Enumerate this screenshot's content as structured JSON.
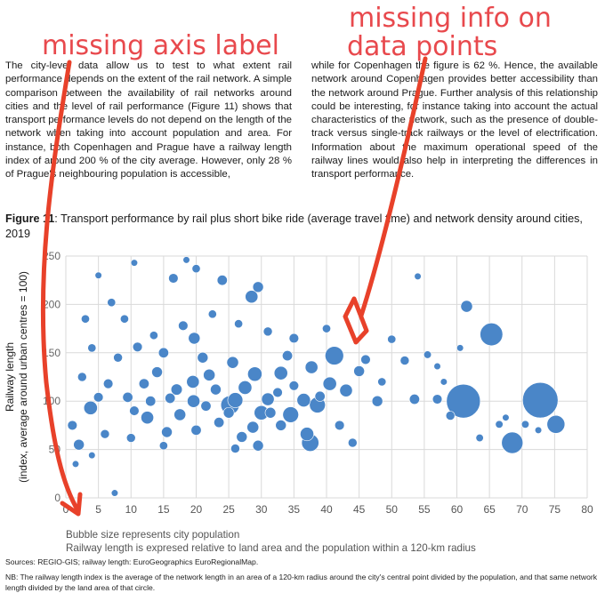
{
  "body_text": {
    "left_paragraph": "The city-level data allow us to test to what extent rail performance depends on the extent of the rail network. A simple comparison between the availability of rail networks around cities and the level of rail performance (Figure 11) shows that transport performance levels do not depend on the length of the network when taking into account population and area. For instance, both Copenhagen and Prague have a railway length index of around 200 % of the city average. However, only 28 % of Prague's neighbouring population is accessible,",
    "left_link": "Figure 11",
    "right_paragraph": "while for Copenhagen the figure is 62 %. Hence, the available network around Copenhagen provides better accessibility than the network around Prague. Further analysis of this relationship could be interesting, for instance taking into account the actual characteristics of the network, such as the presence of double-track versus single-track railways or the level of electrification. Information about the maximum operational speed of the railway lines would also help in interpreting the differences in transport performance."
  },
  "figure": {
    "label": "Figure 11",
    "title": ": Transport performance by rail plus short bike ride (average travel time) and network density around cities, 2019",
    "bubble_note": "Bubble size represents city population",
    "x_note": "Railway length is expresed relative to land area and the population within a 120-km radius",
    "sources": "Sources: REGIO-GIS; railway length: EuroGeographics EuroRegionalMap.",
    "nb": "NB: The railway length index is the average of the network length in an area of a 120-km radius around the city's central point divided by the population, and that same network length divided by the land area of that circle."
  },
  "annotations": {
    "missing_axis_label": "missing axis label",
    "missing_info_line1": "missing info on",
    "missing_info_line2": "data points",
    "arrow_color": "#e8412a",
    "text_color": "#e8494d"
  },
  "colors": {
    "bubble": "#4a86c8",
    "grid": "#d9d9d9",
    "link": "#2f6fbf"
  },
  "chart_data": {
    "type": "scatter",
    "title": "Transport performance by rail plus short bike ride (average travel time) and network density around cities, 2019",
    "xlabel": "",
    "ylabel": "Railway length (index, average around urban centres = 100)",
    "xlim": [
      0,
      80
    ],
    "ylim": [
      0,
      250
    ],
    "x_ticks": [
      0,
      5,
      10,
      15,
      20,
      25,
      30,
      35,
      40,
      45,
      50,
      55,
      60,
      65,
      70,
      75,
      80
    ],
    "y_ticks": [
      0,
      50,
      100,
      150,
      200,
      250
    ],
    "grid": true,
    "bubble_size": "city population",
    "points": [
      {
        "x": 61,
        "y": 100,
        "size": 100
      },
      {
        "x": 72.8,
        "y": 101,
        "size": 110
      },
      {
        "x": 65.3,
        "y": 169,
        "size": 45
      },
      {
        "x": 68.5,
        "y": 57,
        "size": 40
      },
      {
        "x": 75.2,
        "y": 76,
        "size": 28
      },
      {
        "x": 61.5,
        "y": 198,
        "size": 12
      },
      {
        "x": 37.7,
        "y": 135,
        "size": 14
      },
      {
        "x": 41.2,
        "y": 147,
        "size": 30
      },
      {
        "x": 37.5,
        "y": 57,
        "size": 26
      },
      {
        "x": 37.0,
        "y": 66,
        "size": 16
      },
      {
        "x": 38.6,
        "y": 96,
        "size": 22
      },
      {
        "x": 34.5,
        "y": 86,
        "size": 22
      },
      {
        "x": 36.5,
        "y": 101,
        "size": 16
      },
      {
        "x": 40.5,
        "y": 118,
        "size": 16
      },
      {
        "x": 30.0,
        "y": 88,
        "size": 18
      },
      {
        "x": 25.2,
        "y": 96,
        "size": 30
      },
      {
        "x": 26.0,
        "y": 101,
        "size": 20
      },
      {
        "x": 27.5,
        "y": 114,
        "size": 16
      },
      {
        "x": 31.0,
        "y": 102,
        "size": 14
      },
      {
        "x": 33.0,
        "y": 129,
        "size": 16
      },
      {
        "x": 29.0,
        "y": 128,
        "size": 18
      },
      {
        "x": 28.5,
        "y": 208,
        "size": 14
      },
      {
        "x": 29.5,
        "y": 218,
        "size": 10
      },
      {
        "x": 25.6,
        "y": 140,
        "size": 12
      },
      {
        "x": 22.0,
        "y": 127,
        "size": 12
      },
      {
        "x": 19.5,
        "y": 120,
        "size": 14
      },
      {
        "x": 19.7,
        "y": 165,
        "size": 12
      },
      {
        "x": 19.6,
        "y": 100,
        "size": 14
      },
      {
        "x": 17.5,
        "y": 86,
        "size": 12
      },
      {
        "x": 3.8,
        "y": 93,
        "size": 16
      },
      {
        "x": 12.5,
        "y": 83,
        "size": 14
      },
      {
        "x": 15.5,
        "y": 68,
        "size": 10
      },
      {
        "x": 20.0,
        "y": 70,
        "size": 9
      },
      {
        "x": 28.7,
        "y": 73,
        "size": 12
      },
      {
        "x": 31.4,
        "y": 88,
        "size": 10
      },
      {
        "x": 25.0,
        "y": 88,
        "size": 10
      },
      {
        "x": 34.0,
        "y": 147,
        "size": 9
      },
      {
        "x": 35.0,
        "y": 165,
        "size": 8
      },
      {
        "x": 43.0,
        "y": 111,
        "size": 14
      },
      {
        "x": 45.0,
        "y": 131,
        "size": 10
      },
      {
        "x": 46.0,
        "y": 143,
        "size": 8
      },
      {
        "x": 47.8,
        "y": 100,
        "size": 10
      },
      {
        "x": 53.5,
        "y": 102,
        "size": 9
      },
      {
        "x": 57.0,
        "y": 102,
        "size": 8
      },
      {
        "x": 59.0,
        "y": 85,
        "size": 7
      },
      {
        "x": 52.0,
        "y": 142,
        "size": 7
      },
      {
        "x": 50.0,
        "y": 164,
        "size": 6
      },
      {
        "x": 42.0,
        "y": 75,
        "size": 8
      },
      {
        "x": 44.0,
        "y": 57,
        "size": 7
      },
      {
        "x": 33.0,
        "y": 75,
        "size": 10
      },
      {
        "x": 23.0,
        "y": 112,
        "size": 10
      },
      {
        "x": 21.0,
        "y": 145,
        "size": 10
      },
      {
        "x": 17.0,
        "y": 112,
        "size": 11
      },
      {
        "x": 14.0,
        "y": 130,
        "size": 10
      },
      {
        "x": 15.0,
        "y": 150,
        "size": 9
      },
      {
        "x": 18.0,
        "y": 178,
        "size": 8
      },
      {
        "x": 11.0,
        "y": 156,
        "size": 8
      },
      {
        "x": 8.0,
        "y": 145,
        "size": 7
      },
      {
        "x": 6.5,
        "y": 118,
        "size": 8
      },
      {
        "x": 5.0,
        "y": 104,
        "size": 8
      },
      {
        "x": 9.5,
        "y": 104,
        "size": 9
      },
      {
        "x": 13.0,
        "y": 100,
        "size": 9
      },
      {
        "x": 16.0,
        "y": 103,
        "size": 9
      },
      {
        "x": 21.5,
        "y": 95,
        "size": 9
      },
      {
        "x": 23.5,
        "y": 78,
        "size": 9
      },
      {
        "x": 27.0,
        "y": 63,
        "size": 10
      },
      {
        "x": 29.5,
        "y": 54,
        "size": 10
      },
      {
        "x": 26.0,
        "y": 51,
        "size": 7
      },
      {
        "x": 2.0,
        "y": 55,
        "size": 10
      },
      {
        "x": 1.0,
        "y": 75,
        "size": 8
      },
      {
        "x": 10.5,
        "y": 90,
        "size": 8
      },
      {
        "x": 12.0,
        "y": 118,
        "size": 9
      },
      {
        "x": 16.5,
        "y": 227,
        "size": 8
      },
      {
        "x": 20.0,
        "y": 237,
        "size": 6
      },
      {
        "x": 24.0,
        "y": 225,
        "size": 9
      },
      {
        "x": 31.0,
        "y": 172,
        "size": 7
      },
      {
        "x": 35.0,
        "y": 116,
        "size": 8
      },
      {
        "x": 39.0,
        "y": 105,
        "size": 9
      },
      {
        "x": 32.5,
        "y": 109,
        "size": 8
      },
      {
        "x": 2.5,
        "y": 125,
        "size": 7
      },
      {
        "x": 4.0,
        "y": 155,
        "size": 6
      },
      {
        "x": 3.0,
        "y": 185,
        "size": 6
      },
      {
        "x": 7.0,
        "y": 202,
        "size": 6
      },
      {
        "x": 9.0,
        "y": 185,
        "size": 6
      },
      {
        "x": 13.5,
        "y": 168,
        "size": 6
      },
      {
        "x": 22.5,
        "y": 190,
        "size": 6
      },
      {
        "x": 26.5,
        "y": 180,
        "size": 6
      },
      {
        "x": 10.0,
        "y": 62,
        "size": 7
      },
      {
        "x": 15.0,
        "y": 54,
        "size": 6
      },
      {
        "x": 6.0,
        "y": 66,
        "size": 7
      },
      {
        "x": 40.0,
        "y": 175,
        "size": 6
      },
      {
        "x": 48.5,
        "y": 120,
        "size": 6
      },
      {
        "x": 55.5,
        "y": 148,
        "size": 5
      },
      {
        "x": 54.0,
        "y": 229,
        "size": 4
      },
      {
        "x": 5.0,
        "y": 230,
        "size": 4
      },
      {
        "x": 10.5,
        "y": 243,
        "size": 4
      },
      {
        "x": 18.5,
        "y": 246,
        "size": 4
      },
      {
        "x": 7.5,
        "y": 5,
        "size": 4
      },
      {
        "x": 4.0,
        "y": 44,
        "size": 4
      },
      {
        "x": 1.5,
        "y": 35,
        "size": 4
      },
      {
        "x": 63.5,
        "y": 62,
        "size": 5
      },
      {
        "x": 66.5,
        "y": 76,
        "size": 5
      },
      {
        "x": 70.5,
        "y": 76,
        "size": 5
      },
      {
        "x": 72.5,
        "y": 70,
        "size": 4
      },
      {
        "x": 67.5,
        "y": 83,
        "size": 4
      },
      {
        "x": 58.0,
        "y": 120,
        "size": 4
      },
      {
        "x": 57.0,
        "y": 136,
        "size": 4
      },
      {
        "x": 60.5,
        "y": 155,
        "size": 4
      }
    ]
  }
}
